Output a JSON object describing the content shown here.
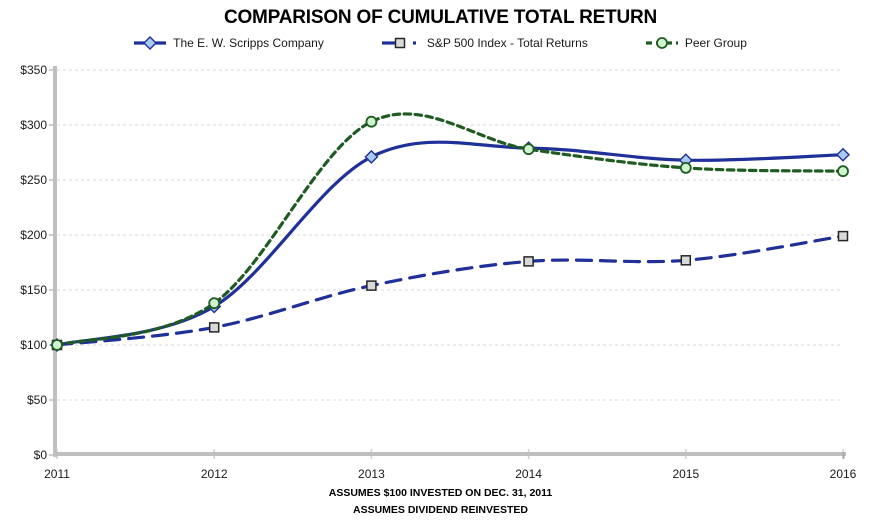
{
  "title": "COMPARISON OF CUMULATIVE TOTAL RETURN",
  "footer": {
    "line1": "ASSUMES $100 INVESTED ON DEC. 31, 2011",
    "line2": "ASSUMES DIVIDEND REINVESTED"
  },
  "colors": {
    "navy": "#1F3099",
    "green": "#1F5B22",
    "diamond_fill": "#A8CAF0",
    "square_fill": "#D9D9D9",
    "square_stroke": "#262626",
    "circle_fill": "#CFF5CF",
    "gridline": "#D9D9D9",
    "axis": "#BFBFBF",
    "text": "#1A1A1A"
  },
  "chart_data": {
    "type": "line",
    "title": "COMPARISON OF CUMULATIVE TOTAL RETURN",
    "categories": [
      "2011",
      "2012",
      "2013",
      "2014",
      "2015",
      "2016"
    ],
    "series": [
      {
        "name": "The E. W. Scripps Company",
        "values": [
          100,
          135,
          271,
          279,
          268,
          273
        ],
        "color": "#1F3099",
        "line_style": "solid",
        "marker": "diamond",
        "marker_fill": "#A8CAF0",
        "marker_stroke": "#1F3099"
      },
      {
        "name": "S&P 500 Index - Total Returns",
        "values": [
          100,
          116,
          154,
          176,
          177,
          199
        ],
        "color": "#1F3099",
        "line_style": "long-dash",
        "marker": "square",
        "marker_fill": "#D9D9D9",
        "marker_stroke": "#262626"
      },
      {
        "name": "Peer Group",
        "values": [
          100,
          138,
          303,
          278,
          261,
          258
        ],
        "color": "#1F5B22",
        "line_style": "short-dash",
        "marker": "circle",
        "marker_fill": "#CFF5CF",
        "marker_stroke": "#1F5B22"
      }
    ],
    "y_tick_labels": [
      "$0",
      "$50",
      "$100",
      "$150",
      "$200",
      "$250",
      "$300",
      "$350"
    ],
    "y_tick_values": [
      0,
      50,
      100,
      150,
      200,
      250,
      300,
      350
    ],
    "ylim": [
      0,
      350
    ],
    "xlabel": "",
    "ylabel": "",
    "grid": "horizontal-dashed",
    "legend_position": "top",
    "smoothed": true
  }
}
